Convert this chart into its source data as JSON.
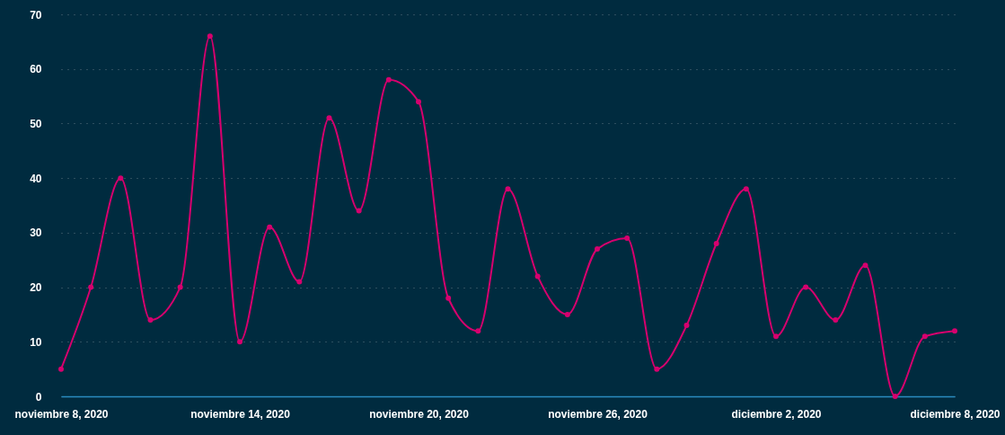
{
  "chart_data": {
    "type": "line",
    "x": [
      "2020-11-08",
      "2020-11-09",
      "2020-11-10",
      "2020-11-11",
      "2020-11-12",
      "2020-11-13",
      "2020-11-14",
      "2020-11-15",
      "2020-11-16",
      "2020-11-17",
      "2020-11-18",
      "2020-11-19",
      "2020-11-20",
      "2020-11-21",
      "2020-11-22",
      "2020-11-23",
      "2020-11-24",
      "2020-11-25",
      "2020-11-26",
      "2020-11-27",
      "2020-11-28",
      "2020-11-29",
      "2020-11-30",
      "2020-12-01",
      "2020-12-02",
      "2020-12-03",
      "2020-12-04",
      "2020-12-05",
      "2020-12-06",
      "2020-12-07",
      "2020-12-08"
    ],
    "series": [
      {
        "color": "#d6006e",
        "values": [
          5,
          20,
          40,
          14,
          20,
          66,
          10,
          31,
          21,
          51,
          34,
          58,
          54,
          18,
          12,
          38,
          22,
          15,
          27,
          29,
          5,
          13,
          28,
          38,
          11,
          20,
          14,
          24,
          0,
          11,
          12
        ]
      }
    ],
    "xlim": [
      "2020-11-08",
      "2020-12-08"
    ],
    "xticks": [
      {
        "value": "2020-11-08",
        "label": "noviembre  8, 2020"
      },
      {
        "value": "2020-11-14",
        "label": "noviembre 14, 2020"
      },
      {
        "value": "2020-11-20",
        "label": "noviembre 20, 2020"
      },
      {
        "value": "2020-11-26",
        "label": "noviembre 26, 2020"
      },
      {
        "value": "2020-12-02",
        "label": "diciembre  2, 2020"
      },
      {
        "value": "2020-12-08",
        "label": "diciembre  8, 2020"
      }
    ],
    "ylim": [
      0,
      70
    ],
    "yticks": [
      0,
      10,
      20,
      30,
      40,
      50,
      60,
      70
    ],
    "grid": "y",
    "marker": "circle",
    "line_style": "solid"
  }
}
